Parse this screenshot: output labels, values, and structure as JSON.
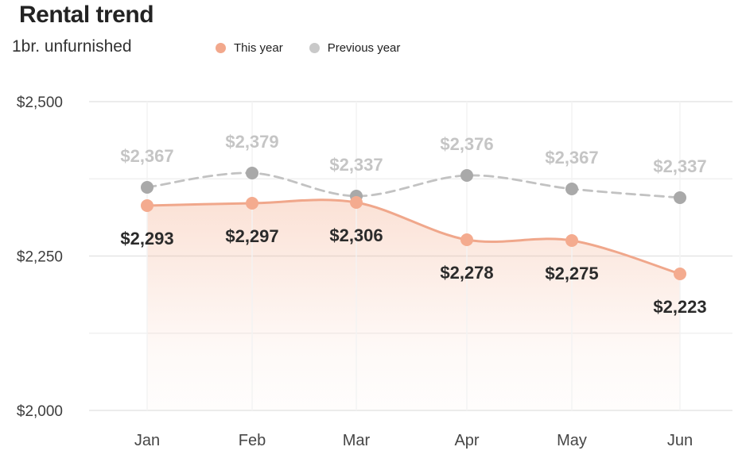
{
  "header": {
    "title": "Rental trend",
    "subtitle": "1br. unfurnished"
  },
  "legend": {
    "items": [
      {
        "label": "This year",
        "color": "#f2a88c"
      },
      {
        "label": "Previous year",
        "color": "#c9c9c9"
      }
    ]
  },
  "chart_data": {
    "type": "line",
    "title": "Rental trend",
    "subtitle": "1br. unfurnished",
    "categories": [
      "Jan",
      "Feb",
      "Mar",
      "Apr",
      "May",
      "Jun"
    ],
    "series": [
      {
        "name": "This year",
        "values": [
          2293,
          2297,
          2306,
          2278,
          2275,
          2223
        ],
        "labels": [
          "$2,293",
          "$2,297",
          "$2,306",
          "$2,278",
          "$2,275",
          "$2,223"
        ],
        "style": "solid-smooth-with-area-fill",
        "line_color": "#f0a78b",
        "point_color": "#f4ab8f",
        "label_color": "#2b2b2b"
      },
      {
        "name": "Previous year",
        "values": [
          2367,
          2379,
          2337,
          2376,
          2367,
          2337
        ],
        "labels": [
          "$2,367",
          "$2,379",
          "$2,337",
          "$2,376",
          "$2,367",
          "$2,337"
        ],
        "style": "dashed-smooth",
        "line_color": "#c2c2c2",
        "point_color": "#a9a9a9",
        "label_color": "#c5c5c5"
      }
    ],
    "xlabel": "",
    "ylabel": "",
    "ylim": [
      2000,
      2500
    ],
    "yticks": [
      {
        "value": 2500,
        "label": "$2,500"
      },
      {
        "value": 2250,
        "label": "$2,250"
      },
      {
        "value": 2000,
        "label": "$2,000"
      }
    ],
    "grid": "horizontal major + unlabeled minor midlines, faint vertical line per month",
    "legend_position": "top",
    "colors": {
      "axis_text": "#3d3d3d",
      "month_text": "#464646",
      "grid_major": "#e6e6e6",
      "grid_minor": "#eeeeee",
      "grid_vertical": "#f3f3f3",
      "area_fill": "#f3a886",
      "background": "#ffffff"
    }
  }
}
